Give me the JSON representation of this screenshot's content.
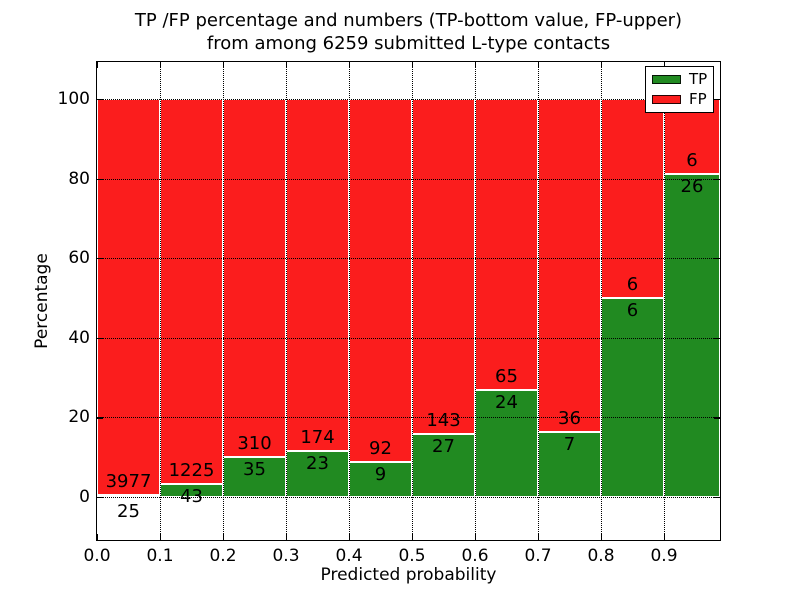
{
  "title": {
    "line1": "TP /FP percentage and numbers (TP-bottom value, FP-upper)",
    "line2": "from among 6259 submitted L-type contacts"
  },
  "axes": {
    "xlabel": "Predicted probability",
    "ylabel": "Percentage",
    "x_tick_labels": [
      "0.0",
      "0.1",
      "0.2",
      "0.3",
      "0.4",
      "0.5",
      "0.6",
      "0.7",
      "0.8",
      "0.9"
    ],
    "y_tick_labels": [
      "0",
      "20",
      "40",
      "60",
      "80",
      "100"
    ]
  },
  "legend": {
    "position": "upper right",
    "items": [
      {
        "label": "TP",
        "color": "#218a21"
      },
      {
        "label": "FP",
        "color": "#fb1d1d"
      }
    ]
  },
  "colors": {
    "tp_green": "#218a21",
    "fp_red": "#fb1d1d",
    "grid": "#000000",
    "background": "#ffffff",
    "text": "#000000"
  },
  "chart_data": {
    "type": "bar",
    "stacked": true,
    "title": "TP /FP percentage and numbers (TP-bottom value, FP-upper) from among 6259 submitted L-type contacts",
    "xlabel": "Predicted probability",
    "ylabel": "Percentage",
    "total_contacts": 6259,
    "bin_edges": [
      0.0,
      0.1,
      0.2,
      0.3,
      0.4,
      0.5,
      0.6,
      0.7,
      0.8,
      0.9,
      1.0
    ],
    "series": [
      {
        "name": "TP",
        "color": "#218a21",
        "counts": [
          25,
          43,
          35,
          23,
          9,
          27,
          24,
          7,
          6,
          26
        ]
      },
      {
        "name": "FP",
        "color": "#fb1d1d",
        "counts": [
          3977,
          1225,
          310,
          174,
          92,
          143,
          65,
          36,
          6,
          6
        ]
      }
    ],
    "tp_percent": [
      0.62,
      3.39,
      10.14,
      11.68,
      8.91,
      15.88,
      26.97,
      16.28,
      50.0,
      81.25
    ],
    "bars_note": "each bar stacked to 100%; green bottom height = TP/(TP+FP)*100, red top = remainder; numeric labels show raw counts",
    "ylim_display": [
      0,
      100
    ],
    "xlim": [
      0.0,
      0.99
    ],
    "yticks": [
      0,
      20,
      40,
      60,
      80,
      100
    ],
    "xticks": [
      0.0,
      0.1,
      0.2,
      0.3,
      0.4,
      0.5,
      0.6,
      0.7,
      0.8,
      0.9
    ],
    "grid": "dotted",
    "legend_position": "upper right"
  }
}
